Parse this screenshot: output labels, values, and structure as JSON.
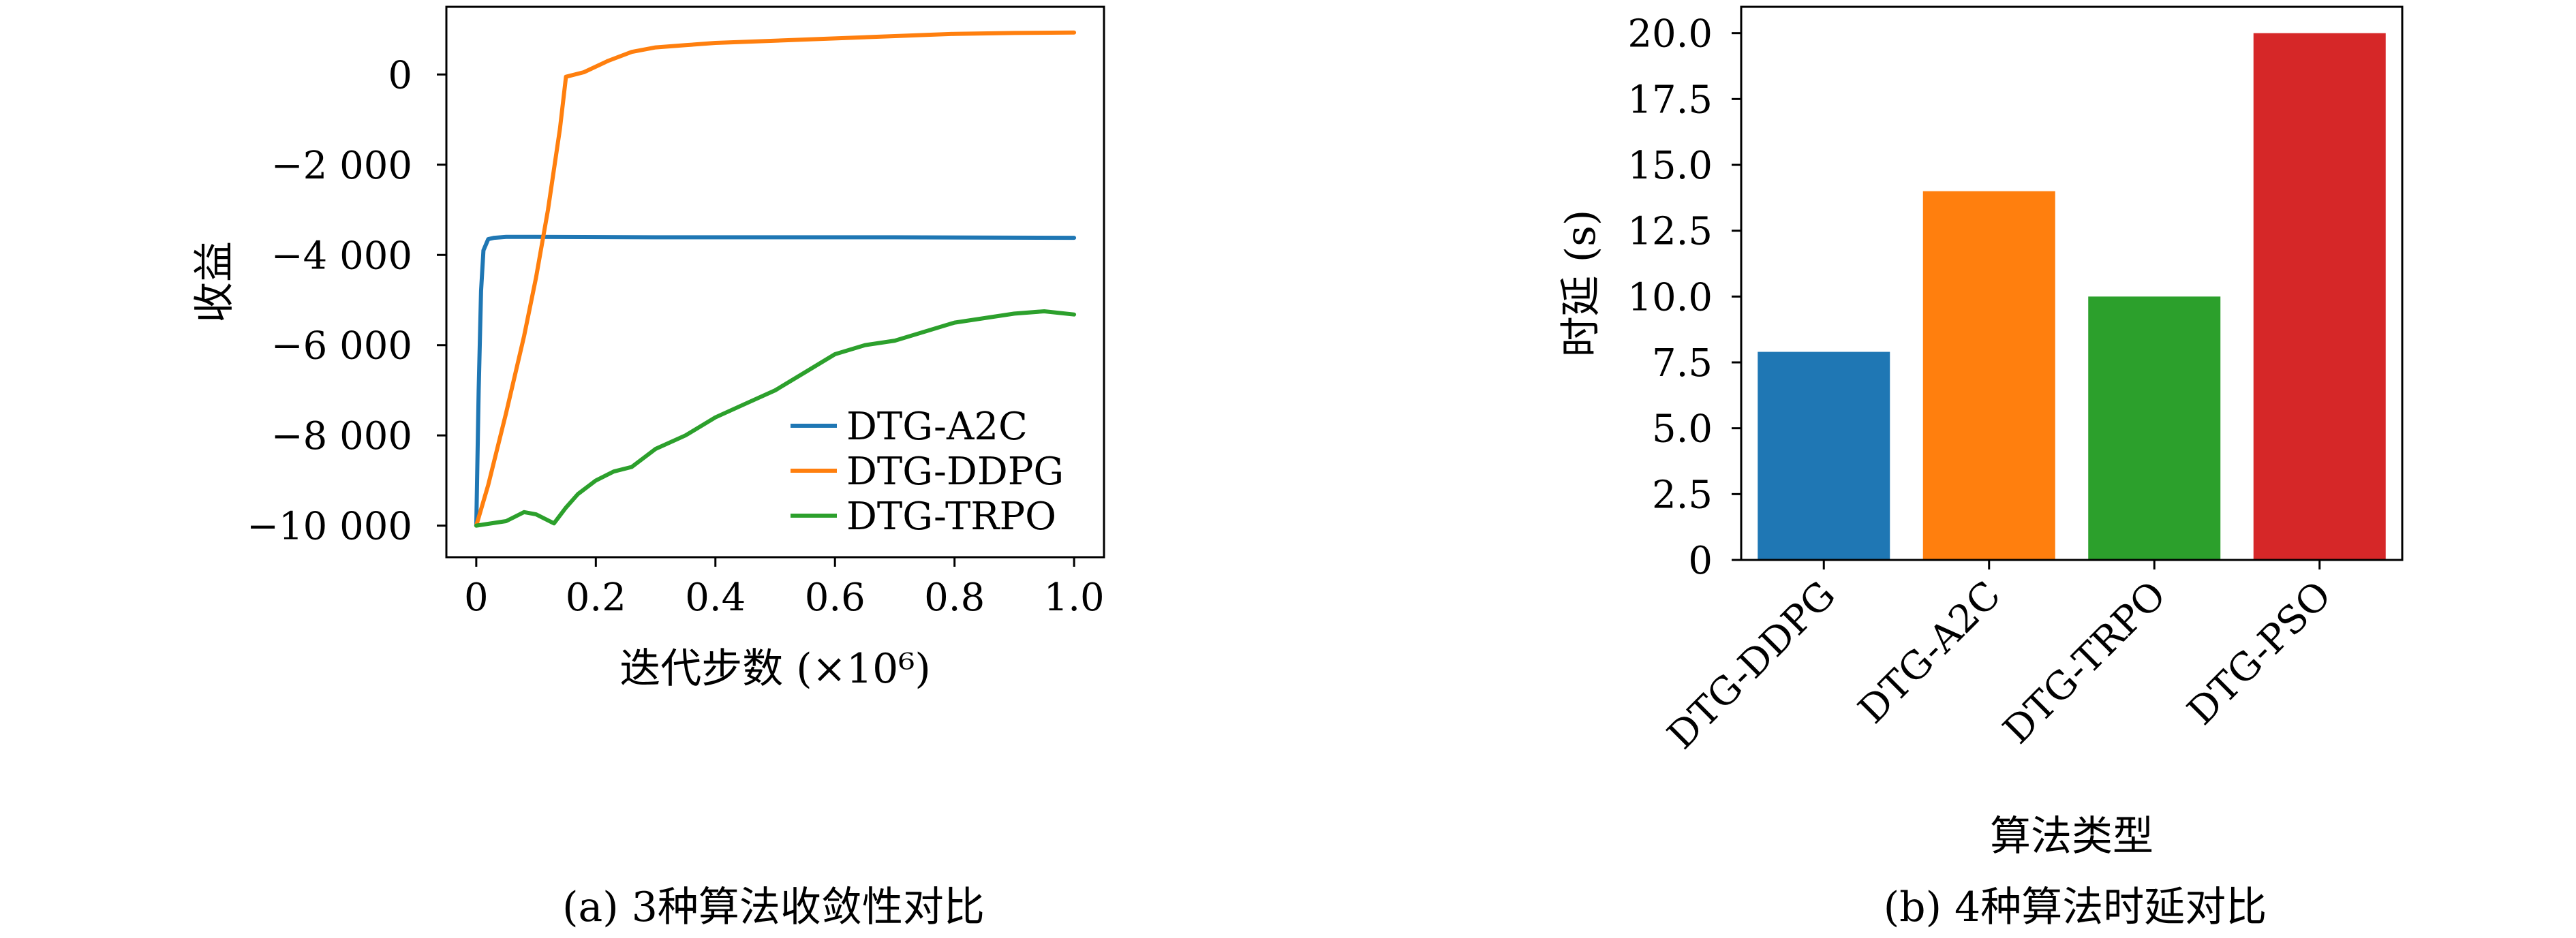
{
  "chart_data": [
    {
      "type": "line",
      "caption": "(a) 3种算法收敛性对比",
      "xlabel": "迭代步数 (×10⁶)",
      "ylabel": "收益",
      "xlim": [
        -0.05,
        1.05
      ],
      "ylim": [
        -10700,
        1500
      ],
      "x_ticks": [
        0,
        0.2,
        0.4,
        0.6,
        0.8,
        1.0
      ],
      "x_tick_labels": [
        "0",
        "0.2",
        "0.4",
        "0.6",
        "0.8",
        "1.0"
      ],
      "y_ticks": [
        0,
        -2000,
        -4000,
        -6000,
        -8000,
        -10000
      ],
      "y_tick_labels": [
        "0",
        "−2 000",
        "−4 000",
        "−6 000",
        "−8 000",
        "−10 000"
      ],
      "grid": false,
      "legend_position": "lower-right",
      "series": [
        {
          "name": "DTG-A2C",
          "color": "#1f77b4",
          "x": [
            0,
            0.004,
            0.008,
            0.012,
            0.02,
            0.03,
            0.05,
            0.1,
            0.3,
            0.5,
            0.7,
            1.0
          ],
          "y": [
            -10000,
            -7000,
            -4800,
            -3900,
            -3650,
            -3620,
            -3600,
            -3600,
            -3610,
            -3610,
            -3610,
            -3620
          ]
        },
        {
          "name": "DTG-DDPG",
          "color": "#ff7f0e",
          "x": [
            0,
            0.02,
            0.05,
            0.08,
            0.1,
            0.12,
            0.14,
            0.15,
            0.18,
            0.22,
            0.26,
            0.3,
            0.35,
            0.4,
            0.5,
            0.6,
            0.7,
            0.8,
            0.9,
            1.0
          ],
          "y": [
            -10000,
            -9100,
            -7500,
            -5800,
            -4500,
            -3000,
            -1200,
            -50,
            50,
            300,
            500,
            600,
            650,
            700,
            750,
            800,
            850,
            900,
            920,
            930
          ]
        },
        {
          "name": "DTG-TRPO",
          "color": "#2ca02c",
          "x": [
            0,
            0.05,
            0.08,
            0.1,
            0.13,
            0.15,
            0.17,
            0.2,
            0.23,
            0.26,
            0.3,
            0.35,
            0.4,
            0.45,
            0.5,
            0.55,
            0.6,
            0.65,
            0.7,
            0.75,
            0.8,
            0.85,
            0.9,
            0.95,
            1.0
          ],
          "y": [
            -10000,
            -9900,
            -9700,
            -9750,
            -9950,
            -9600,
            -9300,
            -9000,
            -8800,
            -8700,
            -8300,
            -8000,
            -7600,
            -7300,
            -7000,
            -6600,
            -6200,
            -6000,
            -5900,
            -5700,
            -5500,
            -5400,
            -5300,
            -5250,
            -5320
          ]
        }
      ]
    },
    {
      "type": "bar",
      "caption": "(b) 4种算法时延对比",
      "xlabel": "算法类型",
      "ylabel": "时延 (s)",
      "ylim": [
        0,
        21
      ],
      "y_ticks": [
        0,
        2.5,
        5.0,
        7.5,
        10.0,
        12.5,
        15.0,
        17.5,
        20.0
      ],
      "y_tick_labels": [
        "0",
        "2.5",
        "5.0",
        "7.5",
        "10.0",
        "12.5",
        "15.0",
        "17.5",
        "20.0"
      ],
      "grid": false,
      "categories": [
        "DTG-DDPG",
        "DTG-A2C",
        "DTG-TRPO",
        "DTG-PSO"
      ],
      "values": [
        7.9,
        14.0,
        10.0,
        20.0
      ],
      "colors": [
        "#1f77b4",
        "#ff7f0e",
        "#2ca02c",
        "#d62728"
      ]
    }
  ]
}
